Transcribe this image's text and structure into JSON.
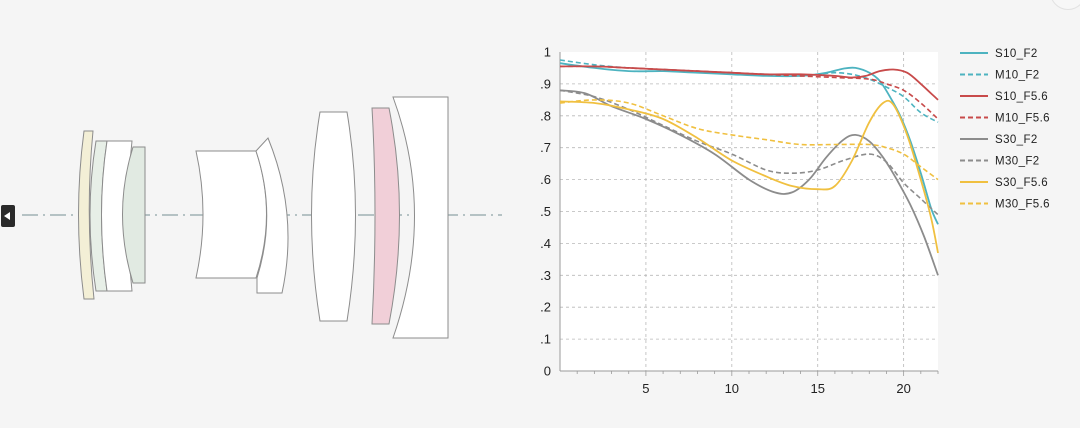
{
  "chart_data": {
    "type": "line",
    "title": "",
    "xlabel": "",
    "ylabel": "",
    "xlim": [
      0,
      22
    ],
    "ylim": [
      0,
      1
    ],
    "x_ticks": [
      5,
      10,
      15,
      20
    ],
    "x_tick_labels": [
      "5",
      "10",
      "15",
      "20"
    ],
    "y_ticks": [
      0,
      0.1,
      0.2,
      0.3,
      0.4,
      0.5,
      0.6,
      0.7,
      0.8,
      0.9,
      1
    ],
    "y_tick_labels": [
      "0",
      "0.1",
      "0.2",
      "0.3",
      "0.4",
      "0.5",
      "0.6",
      "0.7",
      "0.8",
      "0.9",
      "1"
    ],
    "grid": true,
    "legend_position": "right",
    "series": [
      {
        "name": "S10_F2",
        "color": "#4db3c0",
        "dash": "solid",
        "points": [
          [
            0,
            0.965
          ],
          [
            2,
            0.95
          ],
          [
            4,
            0.94
          ],
          [
            6,
            0.94
          ],
          [
            8,
            0.935
          ],
          [
            10,
            0.93
          ],
          [
            12,
            0.925
          ],
          [
            14,
            0.925
          ],
          [
            15.5,
            0.935
          ],
          [
            16.5,
            0.948
          ],
          [
            17.2,
            0.95
          ],
          [
            18,
            0.935
          ],
          [
            18.6,
            0.91
          ],
          [
            19.2,
            0.86
          ],
          [
            19.8,
            0.8
          ],
          [
            20.4,
            0.72
          ],
          [
            21,
            0.62
          ],
          [
            21.6,
            0.51
          ],
          [
            22,
            0.46
          ]
        ]
      },
      {
        "name": "M10_F2",
        "color": "#4db3c0",
        "dash": "dashed",
        "points": [
          [
            0,
            0.975
          ],
          [
            2,
            0.96
          ],
          [
            4,
            0.95
          ],
          [
            6,
            0.945
          ],
          [
            8,
            0.94
          ],
          [
            10,
            0.935
          ],
          [
            12,
            0.93
          ],
          [
            14,
            0.925
          ],
          [
            15,
            0.93
          ],
          [
            16,
            0.935
          ],
          [
            17,
            0.93
          ],
          [
            18,
            0.915
          ],
          [
            19,
            0.89
          ],
          [
            20,
            0.86
          ],
          [
            21,
            0.81
          ],
          [
            22,
            0.78
          ]
        ]
      },
      {
        "name": "S10_F5.6",
        "color": "#c84a4a",
        "dash": "solid",
        "points": [
          [
            0,
            0.955
          ],
          [
            2,
            0.955
          ],
          [
            4,
            0.95
          ],
          [
            6,
            0.945
          ],
          [
            8,
            0.94
          ],
          [
            10,
            0.935
          ],
          [
            12,
            0.93
          ],
          [
            14,
            0.93
          ],
          [
            16,
            0.925
          ],
          [
            17,
            0.92
          ],
          [
            17.8,
            0.925
          ],
          [
            18.6,
            0.94
          ],
          [
            19.4,
            0.945
          ],
          [
            20.2,
            0.935
          ],
          [
            21,
            0.9
          ],
          [
            21.6,
            0.87
          ],
          [
            22,
            0.85
          ]
        ]
      },
      {
        "name": "M10_F5.6",
        "color": "#c84a4a",
        "dash": "dashed",
        "points": [
          [
            0,
            0.955
          ],
          [
            2,
            0.955
          ],
          [
            4,
            0.95
          ],
          [
            6,
            0.945
          ],
          [
            8,
            0.94
          ],
          [
            10,
            0.935
          ],
          [
            12,
            0.93
          ],
          [
            14,
            0.925
          ],
          [
            16,
            0.92
          ],
          [
            18,
            0.915
          ],
          [
            19,
            0.9
          ],
          [
            20,
            0.88
          ],
          [
            21,
            0.84
          ],
          [
            22,
            0.79
          ]
        ]
      },
      {
        "name": "S30_F2",
        "color": "#8c8c8c",
        "dash": "solid",
        "points": [
          [
            0,
            0.88
          ],
          [
            1.5,
            0.87
          ],
          [
            3,
            0.83
          ],
          [
            5,
            0.79
          ],
          [
            7,
            0.74
          ],
          [
            9,
            0.68
          ],
          [
            11,
            0.6
          ],
          [
            12.5,
            0.56
          ],
          [
            13.5,
            0.56
          ],
          [
            14.5,
            0.6
          ],
          [
            15.5,
            0.67
          ],
          [
            16.5,
            0.725
          ],
          [
            17.2,
            0.74
          ],
          [
            18,
            0.72
          ],
          [
            18.8,
            0.67
          ],
          [
            19.6,
            0.6
          ],
          [
            20.4,
            0.52
          ],
          [
            21.2,
            0.42
          ],
          [
            22,
            0.3
          ]
        ]
      },
      {
        "name": "M30_F2",
        "color": "#8c8c8c",
        "dash": "dashed",
        "points": [
          [
            0,
            0.88
          ],
          [
            2,
            0.86
          ],
          [
            4,
            0.82
          ],
          [
            6,
            0.77
          ],
          [
            8,
            0.72
          ],
          [
            10,
            0.68
          ],
          [
            12,
            0.63
          ],
          [
            13.5,
            0.62
          ],
          [
            15,
            0.63
          ],
          [
            16.5,
            0.66
          ],
          [
            18,
            0.68
          ],
          [
            19,
            0.655
          ],
          [
            20,
            0.59
          ],
          [
            21,
            0.54
          ],
          [
            22,
            0.49
          ]
        ]
      },
      {
        "name": "S30_F5.6",
        "color": "#f0c040",
        "dash": "solid",
        "points": [
          [
            0,
            0.845
          ],
          [
            2,
            0.84
          ],
          [
            4,
            0.82
          ],
          [
            6,
            0.79
          ],
          [
            8,
            0.73
          ],
          [
            10,
            0.66
          ],
          [
            12,
            0.61
          ],
          [
            13.5,
            0.58
          ],
          [
            15,
            0.57
          ],
          [
            16,
            0.58
          ],
          [
            17,
            0.66
          ],
          [
            18,
            0.78
          ],
          [
            18.8,
            0.84
          ],
          [
            19.4,
            0.835
          ],
          [
            20.2,
            0.74
          ],
          [
            21,
            0.6
          ],
          [
            21.6,
            0.48
          ],
          [
            22,
            0.37
          ]
        ]
      },
      {
        "name": "M30_F5.6",
        "color": "#f0c040",
        "dash": "dashed",
        "points": [
          [
            0,
            0.84
          ],
          [
            2,
            0.85
          ],
          [
            4,
            0.84
          ],
          [
            6,
            0.8
          ],
          [
            8,
            0.76
          ],
          [
            10,
            0.74
          ],
          [
            12,
            0.725
          ],
          [
            14,
            0.71
          ],
          [
            16,
            0.71
          ],
          [
            18,
            0.71
          ],
          [
            19,
            0.7
          ],
          [
            20,
            0.68
          ],
          [
            21,
            0.64
          ],
          [
            22,
            0.6
          ]
        ]
      }
    ]
  },
  "lens_diagram": {
    "elements": [
      {
        "name": "element-1",
        "fill": "#f3efd6"
      },
      {
        "name": "element-2",
        "fill": "#e7efe7"
      },
      {
        "name": "element-3",
        "fill": "#ffffff"
      },
      {
        "name": "element-4",
        "fill": "#e1eae2"
      },
      {
        "name": "element-5",
        "fill": "#ffffff"
      },
      {
        "name": "element-6",
        "fill": "#ffffff"
      },
      {
        "name": "element-7",
        "fill": "#ffffff"
      },
      {
        "name": "element-8",
        "fill": "#f1cfd8"
      },
      {
        "name": "element-9",
        "fill": "#ffffff"
      }
    ],
    "optical_axis_color": "#8fa4a8"
  },
  "controls": {
    "left_handle_icon": "triangle-left-icon"
  }
}
